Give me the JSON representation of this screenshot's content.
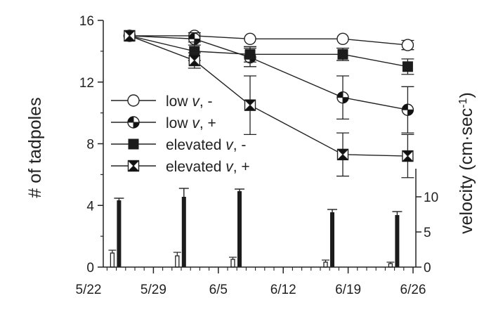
{
  "chart_data": {
    "type": "line",
    "xlabel": "",
    "ylabel": "# of tadpoles",
    "y2label": "velocity (cm·sec⁻¹)",
    "x_ticks": [
      "5/22",
      "5/29",
      "6/5",
      "6/12",
      "6/19",
      "6/26"
    ],
    "x_tick_days": [
      0,
      7,
      14,
      21,
      28,
      35
    ],
    "ylim": [
      0,
      16
    ],
    "y_ticks": [
      "0",
      "4",
      "8",
      "12",
      "16"
    ],
    "y2lim": [
      0,
      14
    ],
    "y2_ticks": [
      "0",
      "5",
      "10"
    ],
    "x_days": [
      2,
      9,
      15,
      25,
      32
    ],
    "series": [
      {
        "name": "low v, -",
        "marker": "circle-open",
        "values": [
          15,
          15,
          14.8,
          14.8,
          14.4
        ],
        "errors": [
          0.1,
          0.2,
          0.2,
          0.2,
          0.3
        ]
      },
      {
        "name": "low v, +",
        "marker": "circle-half",
        "values": [
          15,
          14.8,
          13.6,
          11.0,
          10.2
        ],
        "errors": [
          0.1,
          0.4,
          0.6,
          1.4,
          1.5
        ]
      },
      {
        "name": "elevated v, -",
        "marker": "square-filled",
        "values": [
          15,
          14.0,
          13.8,
          13.8,
          13.0
        ],
        "errors": [
          0.1,
          0.6,
          0.5,
          0.4,
          0.5
        ]
      },
      {
        "name": "elevated v, +",
        "marker": "square-cross",
        "values": [
          15,
          13.4,
          10.5,
          7.3,
          7.2
        ],
        "errors": [
          0.1,
          0.5,
          1.9,
          1.4,
          1.4
        ]
      }
    ],
    "velocity_bars": {
      "low": {
        "values": [
          2.0,
          1.6,
          1.1,
          0.7,
          0.5
        ],
        "errors": [
          0.4,
          0.5,
          0.3,
          0.3,
          0.2
        ]
      },
      "elevated": {
        "values": [
          9.5,
          10.0,
          10.8,
          7.8,
          7.4
        ],
        "errors": [
          0.3,
          1.2,
          0.3,
          0.4,
          0.5
        ]
      }
    },
    "legend": [
      {
        "label_pre": "low ",
        "label_v": "v",
        "label_post": ", -"
      },
      {
        "label_pre": "low ",
        "label_v": "v",
        "label_post": ", +"
      },
      {
        "label_pre": "elevated ",
        "label_v": "v",
        "label_post": ", -"
      },
      {
        "label_pre": "elevated ",
        "label_v": "v",
        "label_post": ", +"
      }
    ]
  }
}
